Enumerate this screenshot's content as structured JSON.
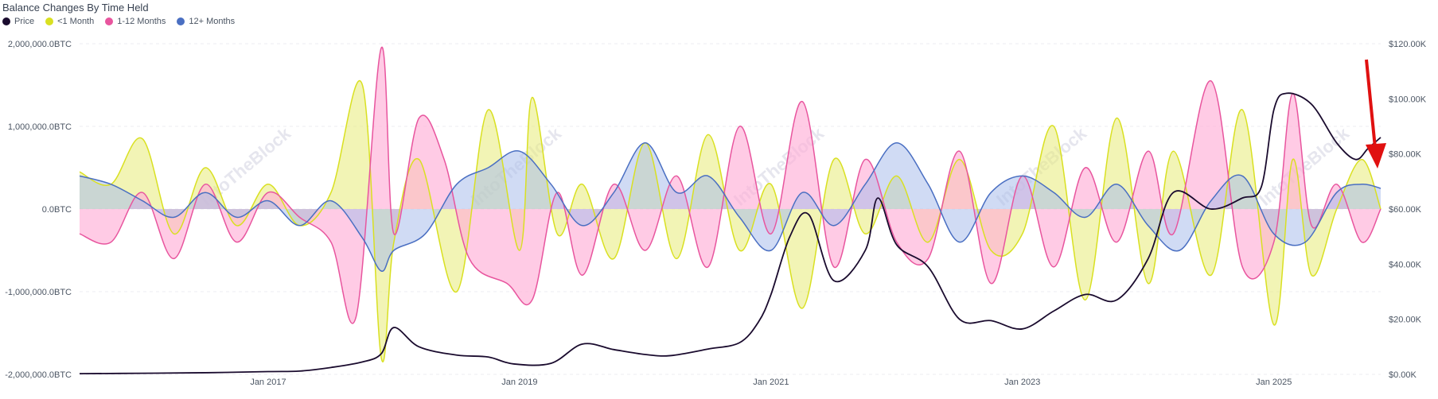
{
  "chart_data": {
    "type": "area",
    "title": "Balance Changes By Time Held",
    "watermark": "IntoTheBlock",
    "legend": [
      {
        "name": "Price",
        "color": "#1a0b2e"
      },
      {
        "name": "<1 Month",
        "color": "#d9e021"
      },
      {
        "name": "1-12 Months",
        "color": "#e8559e"
      },
      {
        "name": "12+ Months",
        "color": "#4a6fc2"
      }
    ],
    "x_axis": {
      "min": 2015.5,
      "max": 2025.85,
      "ticks": [
        {
          "label": "Jan 2017",
          "value": 2017
        },
        {
          "label": "Jan 2019",
          "value": 2019
        },
        {
          "label": "Jan 2021",
          "value": 2021
        },
        {
          "label": "Jan 2023",
          "value": 2023
        },
        {
          "label": "Jan 2025",
          "value": 2025
        }
      ]
    },
    "y_axis_left": {
      "min": -2000000,
      "max": 2000000,
      "ticks": [
        {
          "label": "2,000,000.0BTC",
          "value": 2000000
        },
        {
          "label": "1,000,000.0BTC",
          "value": 1000000
        },
        {
          "label": "0.0BTC",
          "value": 0
        },
        {
          "label": "-1,000,000.0BTC",
          "value": -1000000
        },
        {
          "label": "-2,000,000.0BTC",
          "value": -2000000
        }
      ]
    },
    "y_axis_right": {
      "min": 0,
      "max": 120000,
      "ticks": [
        {
          "label": "$120.00K",
          "value": 120000
        },
        {
          "label": "$100.00K",
          "value": 100000
        },
        {
          "label": "$80.00K",
          "value": 80000
        },
        {
          "label": "$60.00K",
          "value": 60000
        },
        {
          "label": "$40.00K",
          "value": 40000
        },
        {
          "label": "$20.00K",
          "value": 20000
        },
        {
          "label": "$0.00K",
          "value": 0
        }
      ]
    },
    "series": [
      {
        "name": "<1 Month",
        "axis": "left",
        "color": "#d9e021",
        "fill": "rgba(232,235,120,0.55)",
        "x": [
          2015.5,
          2015.75,
          2016.0,
          2016.25,
          2016.5,
          2016.75,
          2017.0,
          2017.25,
          2017.5,
          2017.75,
          2017.9,
          2018.0,
          2018.2,
          2018.5,
          2018.75,
          2019.0,
          2019.1,
          2019.3,
          2019.5,
          2019.75,
          2020.0,
          2020.25,
          2020.5,
          2020.75,
          2021.0,
          2021.25,
          2021.5,
          2021.75,
          2022.0,
          2022.25,
          2022.5,
          2022.75,
          2023.0,
          2023.25,
          2023.5,
          2023.75,
          2024.0,
          2024.2,
          2024.5,
          2024.75,
          2025.0,
          2025.15,
          2025.3,
          2025.5,
          2025.7,
          2025.85
        ],
        "y": [
          450000,
          300000,
          850000,
          -300000,
          500000,
          -200000,
          300000,
          -200000,
          200000,
          1500000,
          -1800000,
          -400000,
          600000,
          -1000000,
          1200000,
          -500000,
          1350000,
          -300000,
          300000,
          -600000,
          800000,
          -600000,
          900000,
          -500000,
          300000,
          -1200000,
          600000,
          -300000,
          400000,
          -400000,
          600000,
          -500000,
          -300000,
          1000000,
          -1100000,
          1100000,
          -900000,
          700000,
          -800000,
          1200000,
          -1400000,
          600000,
          -800000,
          0,
          600000,
          0
        ]
      },
      {
        "name": "1-12 Months",
        "axis": "left",
        "color": "#e8559e",
        "fill": "rgba(255,175,215,0.65)",
        "x": [
          2015.5,
          2015.75,
          2016.0,
          2016.25,
          2016.5,
          2016.75,
          2017.0,
          2017.25,
          2017.5,
          2017.7,
          2017.9,
          2018.0,
          2018.2,
          2018.4,
          2018.6,
          2018.9,
          2019.1,
          2019.3,
          2019.5,
          2019.75,
          2020.0,
          2020.25,
          2020.5,
          2020.75,
          2021.0,
          2021.25,
          2021.5,
          2021.75,
          2022.0,
          2022.25,
          2022.5,
          2022.75,
          2023.0,
          2023.25,
          2023.5,
          2023.75,
          2024.0,
          2024.2,
          2024.5,
          2024.75,
          2025.0,
          2025.15,
          2025.3,
          2025.5,
          2025.7,
          2025.85
        ],
        "y": [
          -300000,
          -400000,
          200000,
          -600000,
          300000,
          -400000,
          200000,
          -100000,
          -400000,
          -1300000,
          1950000,
          -300000,
          1100000,
          600000,
          -600000,
          -900000,
          -1100000,
          200000,
          -800000,
          300000,
          -500000,
          400000,
          -700000,
          1000000,
          -300000,
          1300000,
          -700000,
          600000,
          -400000,
          -600000,
          700000,
          -900000,
          400000,
          -700000,
          500000,
          -400000,
          700000,
          -300000,
          1550000,
          -700000,
          -400000,
          1400000,
          -200000,
          300000,
          -400000,
          0
        ]
      },
      {
        "name": "12+ Months",
        "axis": "left",
        "color": "#4a6fc2",
        "fill": "rgba(170,190,235,0.55)",
        "x": [
          2015.5,
          2015.75,
          2016.0,
          2016.25,
          2016.5,
          2016.75,
          2017.0,
          2017.25,
          2017.5,
          2017.75,
          2017.9,
          2018.0,
          2018.25,
          2018.5,
          2018.75,
          2019.0,
          2019.25,
          2019.5,
          2019.75,
          2020.0,
          2020.25,
          2020.5,
          2020.75,
          2021.0,
          2021.25,
          2021.5,
          2021.75,
          2022.0,
          2022.25,
          2022.5,
          2022.75,
          2023.0,
          2023.25,
          2023.5,
          2023.75,
          2024.0,
          2024.25,
          2024.5,
          2024.75,
          2025.0,
          2025.25,
          2025.5,
          2025.7,
          2025.85
        ],
        "y": [
          400000,
          300000,
          100000,
          -100000,
          200000,
          -100000,
          100000,
          -200000,
          100000,
          -350000,
          -750000,
          -500000,
          -300000,
          300000,
          500000,
          700000,
          300000,
          -200000,
          200000,
          800000,
          200000,
          400000,
          -100000,
          -500000,
          200000,
          -200000,
          300000,
          800000,
          300000,
          -400000,
          200000,
          400000,
          200000,
          -100000,
          300000,
          -200000,
          -500000,
          100000,
          400000,
          -300000,
          -400000,
          200000,
          300000,
          250000
        ]
      },
      {
        "name": "Price",
        "axis": "right",
        "color": "#1a0b2e",
        "x": [
          2015.5,
          2016.0,
          2016.5,
          2017.0,
          2017.25,
          2017.5,
          2017.75,
          2017.9,
          2018.0,
          2018.2,
          2018.5,
          2018.75,
          2018.95,
          2019.25,
          2019.5,
          2019.75,
          2020.0,
          2020.2,
          2020.5,
          2020.75,
          2020.9,
          2021.0,
          2021.15,
          2021.3,
          2021.5,
          2021.75,
          2021.85,
          2022.0,
          2022.25,
          2022.5,
          2022.75,
          2023.0,
          2023.25,
          2023.5,
          2023.75,
          2024.0,
          2024.2,
          2024.5,
          2024.75,
          2024.9,
          2025.0,
          2025.1,
          2025.3,
          2025.5,
          2025.65,
          2025.75,
          2025.85
        ],
        "y": [
          250,
          400,
          600,
          1000,
          1200,
          2500,
          4500,
          7500,
          17000,
          10000,
          7000,
          6300,
          3800,
          4000,
          11000,
          9000,
          7200,
          6800,
          9200,
          11500,
          19000,
          29000,
          50000,
          58000,
          34000,
          45000,
          64000,
          47000,
          39000,
          20000,
          19500,
          16500,
          23000,
          29000,
          27000,
          42000,
          66000,
          60000,
          64000,
          68000,
          96000,
          102000,
          98000,
          84000,
          78000,
          82000,
          86000
        ]
      }
    ]
  }
}
